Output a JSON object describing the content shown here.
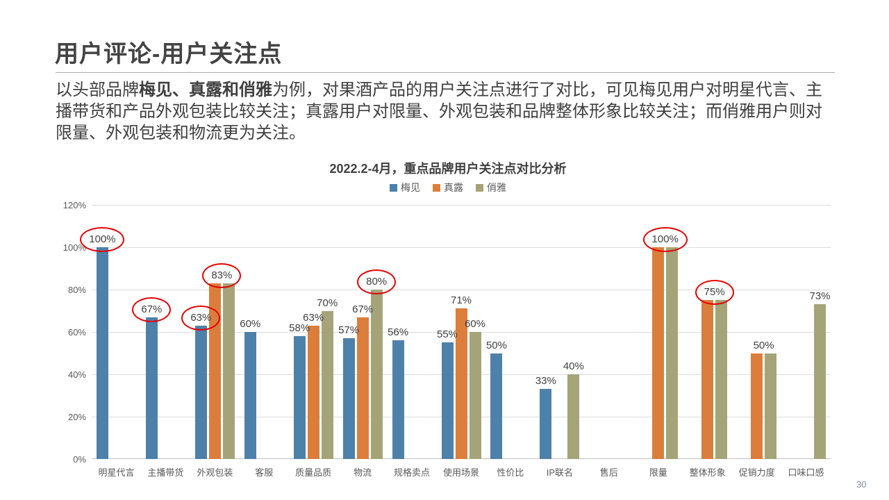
{
  "slide": {
    "title": "用户评论-用户关注点",
    "paragraph": [
      {
        "text": "以头部品牌",
        "bold": false
      },
      {
        "text": "梅见、真露和俏雅",
        "bold": true
      },
      {
        "text": "为例，对果酒产品的用户关注点进行了对比，可见梅见用户对明星代言、主播带货和产品外观包装比较关注；真露用户对限量、外观包装和品牌整体形象比较关注；而俏雅用户则对限量、外观包装和物流更为关注。",
        "bold": false
      }
    ],
    "page_number": "30"
  },
  "chart_data": {
    "type": "bar",
    "title": "2022.2-4月，重点品牌用户关注点对比分析",
    "xlabel": "",
    "ylabel": "",
    "ylim": [
      0,
      120
    ],
    "ytick_step": 20,
    "ytick_labels": [
      "0%",
      "20%",
      "40%",
      "60%",
      "80%",
      "100%",
      "120%"
    ],
    "grid": true,
    "legend_position": "top",
    "categories": [
      "明星代言",
      "主播带货",
      "外观包装",
      "客服",
      "质量品质",
      "物流",
      "规格卖点",
      "使用场景",
      "性价比",
      "IP联名",
      "售后",
      "限量",
      "整体形象",
      "促销力度",
      "口味口感"
    ],
    "series": [
      {
        "name": "梅见",
        "color": "#4E81A9",
        "values": [
          100,
          67,
          63,
          60,
          58,
          57,
          56,
          55,
          50,
          33,
          null,
          null,
          null,
          null,
          null
        ]
      },
      {
        "name": "真露",
        "color": "#DC7E3B",
        "values": [
          null,
          null,
          83,
          null,
          63,
          67,
          null,
          71,
          null,
          null,
          null,
          100,
          75,
          50,
          null
        ]
      },
      {
        "name": "俏雅",
        "color": "#A4A478",
        "values": [
          null,
          null,
          83,
          null,
          70,
          80,
          null,
          60,
          null,
          40,
          null,
          100,
          75,
          50,
          73
        ]
      }
    ],
    "point_labels": [
      {
        "category_index": 0,
        "anchor": "s1",
        "text": "100%",
        "value": 100,
        "circled": true
      },
      {
        "category_index": 1,
        "anchor": "s1",
        "text": "67%",
        "value": 67,
        "circled": true
      },
      {
        "category_index": 2,
        "anchor": "s1",
        "text": "63%",
        "value": 63,
        "circled": true
      },
      {
        "category_index": 2,
        "anchor": "mid23",
        "text": "83%",
        "value": 83,
        "circled": true
      },
      {
        "category_index": 3,
        "anchor": "s1",
        "text": "60%",
        "value": 60,
        "circled": false
      },
      {
        "category_index": 4,
        "anchor": "s1",
        "text": "58%",
        "value": 58,
        "circled": false
      },
      {
        "category_index": 4,
        "anchor": "s2",
        "text": "63%",
        "value": 63,
        "circled": false
      },
      {
        "category_index": 4,
        "anchor": "s3",
        "text": "70%",
        "value": 70,
        "circled": false
      },
      {
        "category_index": 5,
        "anchor": "s1",
        "text": "57%",
        "value": 57,
        "circled": false
      },
      {
        "category_index": 5,
        "anchor": "s2",
        "text": "67%",
        "value": 67,
        "circled": false
      },
      {
        "category_index": 5,
        "anchor": "s3",
        "text": "80%",
        "value": 80,
        "circled": true
      },
      {
        "category_index": 6,
        "anchor": "s1",
        "text": "56%",
        "value": 56,
        "circled": false
      },
      {
        "category_index": 7,
        "anchor": "s1",
        "text": "55%",
        "value": 55,
        "circled": false
      },
      {
        "category_index": 7,
        "anchor": "s2",
        "text": "71%",
        "value": 71,
        "circled": false
      },
      {
        "category_index": 7,
        "anchor": "s3",
        "text": "60%",
        "value": 60,
        "circled": false
      },
      {
        "category_index": 8,
        "anchor": "s1",
        "text": "50%",
        "value": 50,
        "circled": false
      },
      {
        "category_index": 9,
        "anchor": "s1",
        "text": "33%",
        "value": 33,
        "circled": false
      },
      {
        "category_index": 9,
        "anchor": "s3",
        "text": "40%",
        "value": 40,
        "circled": false
      },
      {
        "category_index": 11,
        "anchor": "mid23",
        "text": "100%",
        "value": 100,
        "circled": true
      },
      {
        "category_index": 12,
        "anchor": "mid23",
        "text": "75%",
        "value": 75,
        "circled": true
      },
      {
        "category_index": 13,
        "anchor": "mid23",
        "text": "50%",
        "value": 50,
        "circled": false
      },
      {
        "category_index": 14,
        "anchor": "s3",
        "text": "73%",
        "value": 73,
        "circled": false
      }
    ],
    "highlight_circle_color": "#E60000"
  }
}
